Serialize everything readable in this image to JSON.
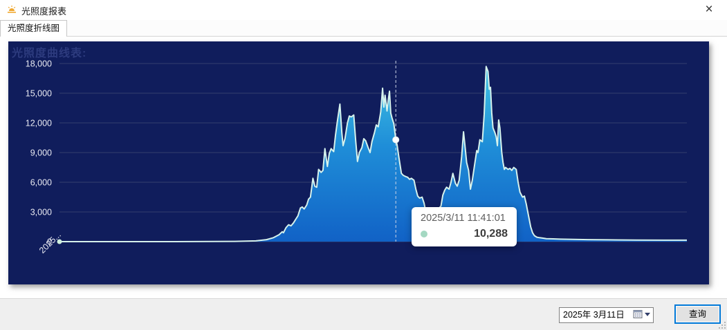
{
  "window": {
    "title": "光照度报表",
    "close_glyph": "×"
  },
  "tabs": [
    {
      "label": "光照度折线图",
      "selected": true
    }
  ],
  "colors": {
    "panel_bg": "#101d5c",
    "grid": "#333f6e",
    "axis_text": "#e9eaf2",
    "title": "#2d3b7e",
    "line": "#d6f2ec",
    "area_top": "#41c4e3",
    "area_mid": "#1f8ed8",
    "area_bottom": "#1162c6",
    "tooltip_dot": "#a4d8c2",
    "accent_blue": "#0078d7"
  },
  "chart_data": {
    "type": "area",
    "title": "光照度曲线表:",
    "ylim": [
      0,
      18000
    ],
    "y_ticks": [
      0,
      3000,
      6000,
      9000,
      12000,
      15000,
      18000
    ],
    "y_tick_labels": [
      "0",
      "3,000",
      "6,000",
      "9,000",
      "12,000",
      "15,000",
      "18,000"
    ],
    "x_tick_labels": [
      "2025..."
    ],
    "grid": "horizontal",
    "legend": "none",
    "series": [
      {
        "name": "光照度",
        "points": [
          [
            0,
            0
          ],
          [
            0.071,
            0
          ],
          [
            0.181,
            0
          ],
          [
            0.28,
            30
          ],
          [
            0.313,
            80
          ],
          [
            0.33,
            200
          ],
          [
            0.341,
            400
          ],
          [
            0.35,
            700
          ],
          [
            0.355,
            1000
          ],
          [
            0.357,
            900
          ],
          [
            0.361,
            1400
          ],
          [
            0.365,
            1700
          ],
          [
            0.369,
            1600
          ],
          [
            0.373,
            1900
          ],
          [
            0.377,
            2300
          ],
          [
            0.38,
            2600
          ],
          [
            0.384,
            3400
          ],
          [
            0.387,
            3500
          ],
          [
            0.39,
            3300
          ],
          [
            0.394,
            3700
          ],
          [
            0.397,
            4300
          ],
          [
            0.4,
            4500
          ],
          [
            0.404,
            6400
          ],
          [
            0.407,
            5600
          ],
          [
            0.41,
            5500
          ],
          [
            0.413,
            7300
          ],
          [
            0.417,
            7000
          ],
          [
            0.42,
            7200
          ],
          [
            0.423,
            9400
          ],
          [
            0.427,
            7600
          ],
          [
            0.43,
            8900
          ],
          [
            0.433,
            9400
          ],
          [
            0.437,
            9100
          ],
          [
            0.44,
            10800
          ],
          [
            0.443,
            12200
          ],
          [
            0.447,
            13900
          ],
          [
            0.45,
            11000
          ],
          [
            0.452,
            9700
          ],
          [
            0.455,
            10400
          ],
          [
            0.459,
            12000
          ],
          [
            0.462,
            12700
          ],
          [
            0.465,
            12600
          ],
          [
            0.469,
            12800
          ],
          [
            0.472,
            10300
          ],
          [
            0.475,
            8100
          ],
          [
            0.478,
            9000
          ],
          [
            0.482,
            9500
          ],
          [
            0.485,
            10400
          ],
          [
            0.488,
            10200
          ],
          [
            0.492,
            9500
          ],
          [
            0.495,
            9000
          ],
          [
            0.498,
            10100
          ],
          [
            0.502,
            11000
          ],
          [
            0.505,
            11800
          ],
          [
            0.508,
            11600
          ],
          [
            0.512,
            13100
          ],
          [
            0.515,
            15500
          ],
          [
            0.517,
            13600
          ],
          [
            0.519,
            14800
          ],
          [
            0.522,
            13200
          ],
          [
            0.524,
            14300
          ],
          [
            0.526,
            15200
          ],
          [
            0.528,
            13000
          ],
          [
            0.53,
            12500
          ],
          [
            0.533,
            11900
          ],
          [
            0.536,
            10288
          ],
          [
            0.538,
            9800
          ],
          [
            0.541,
            8500
          ],
          [
            0.545,
            6900
          ],
          [
            0.548,
            6700
          ],
          [
            0.551,
            6600
          ],
          [
            0.555,
            6500
          ],
          [
            0.558,
            6300
          ],
          [
            0.561,
            6400
          ],
          [
            0.565,
            6200
          ],
          [
            0.568,
            5300
          ],
          [
            0.571,
            4600
          ],
          [
            0.574,
            4400
          ],
          [
            0.578,
            4500
          ],
          [
            0.581,
            3900
          ],
          [
            0.584,
            3000
          ],
          [
            0.588,
            2800
          ],
          [
            0.591,
            3200
          ],
          [
            0.594,
            2900
          ],
          [
            0.598,
            2700
          ],
          [
            0.601,
            3000
          ],
          [
            0.604,
            3300
          ],
          [
            0.608,
            3600
          ],
          [
            0.611,
            4700
          ],
          [
            0.614,
            5200
          ],
          [
            0.617,
            5500
          ],
          [
            0.621,
            5300
          ],
          [
            0.624,
            6000
          ],
          [
            0.627,
            6900
          ],
          [
            0.631,
            5900
          ],
          [
            0.634,
            5600
          ],
          [
            0.637,
            6200
          ],
          [
            0.641,
            8600
          ],
          [
            0.644,
            11100
          ],
          [
            0.646,
            9900
          ],
          [
            0.649,
            8000
          ],
          [
            0.652,
            7200
          ],
          [
            0.655,
            5300
          ],
          [
            0.658,
            6200
          ],
          [
            0.662,
            7900
          ],
          [
            0.665,
            9200
          ],
          [
            0.667,
            9000
          ],
          [
            0.67,
            10300
          ],
          [
            0.674,
            10100
          ],
          [
            0.677,
            12900
          ],
          [
            0.68,
            17700
          ],
          [
            0.683,
            17200
          ],
          [
            0.685,
            15400
          ],
          [
            0.687,
            15600
          ],
          [
            0.689,
            13000
          ],
          [
            0.691,
            11500
          ],
          [
            0.694,
            11000
          ],
          [
            0.696,
            10600
          ],
          [
            0.698,
            9700
          ],
          [
            0.7,
            12300
          ],
          [
            0.702,
            11500
          ],
          [
            0.705,
            9000
          ],
          [
            0.707,
            8000
          ],
          [
            0.709,
            7300
          ],
          [
            0.711,
            7500
          ],
          [
            0.715,
            7300
          ],
          [
            0.718,
            7400
          ],
          [
            0.721,
            7200
          ],
          [
            0.724,
            7500
          ],
          [
            0.728,
            7300
          ],
          [
            0.731,
            6000
          ],
          [
            0.734,
            5000
          ],
          [
            0.738,
            4500
          ],
          [
            0.741,
            4600
          ],
          [
            0.744,
            3800
          ],
          [
            0.748,
            2500
          ],
          [
            0.751,
            1500
          ],
          [
            0.754,
            900
          ],
          [
            0.757,
            600
          ],
          [
            0.761,
            450
          ],
          [
            0.765,
            400
          ],
          [
            0.771,
            350
          ],
          [
            0.776,
            300
          ],
          [
            0.787,
            280
          ],
          [
            0.798,
            250
          ],
          [
            0.82,
            220
          ],
          [
            0.842,
            200
          ],
          [
            0.875,
            180
          ],
          [
            0.92,
            160
          ],
          [
            0.964,
            150
          ],
          [
            1,
            150
          ]
        ]
      }
    ],
    "tooltip": {
      "datetime": "2025/3/11 11:41:01",
      "value": 10288,
      "value_label": "10,288",
      "x_fraction": 0.536
    }
  },
  "footer": {
    "date_value": "2025年 3月11日",
    "query_label": "查询"
  }
}
